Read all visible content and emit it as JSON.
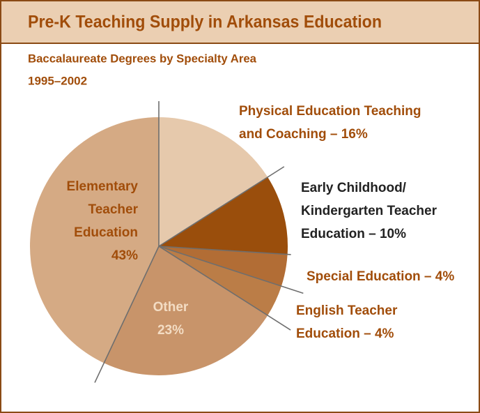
{
  "chart_data": {
    "type": "pie",
    "title": "Pre-K Teaching Supply in Arkansas Education",
    "subtitle": [
      "Baccalaureate Degrees by Specialty Area",
      "1995–2002"
    ],
    "labels": [
      [
        "Physical Education Teaching",
        "and Coaching – 16%"
      ],
      [
        "Early Childhood/",
        "Kindergarten Teacher",
        "Education – 10%"
      ],
      [
        "Special Education – 4%"
      ],
      [
        "English Teacher",
        "Education – 4%"
      ],
      [
        "Other",
        "23%"
      ],
      [
        "Elementary",
        "Teacher",
        "Education",
        "43%"
      ]
    ],
    "values": [
      16,
      10,
      4,
      4,
      23,
      43
    ],
    "colors": [
      "#e6c9ac",
      "#9a4e0c",
      "#b26d35",
      "#bb7d47",
      "#c8946a",
      "#d5aa84"
    ]
  }
}
